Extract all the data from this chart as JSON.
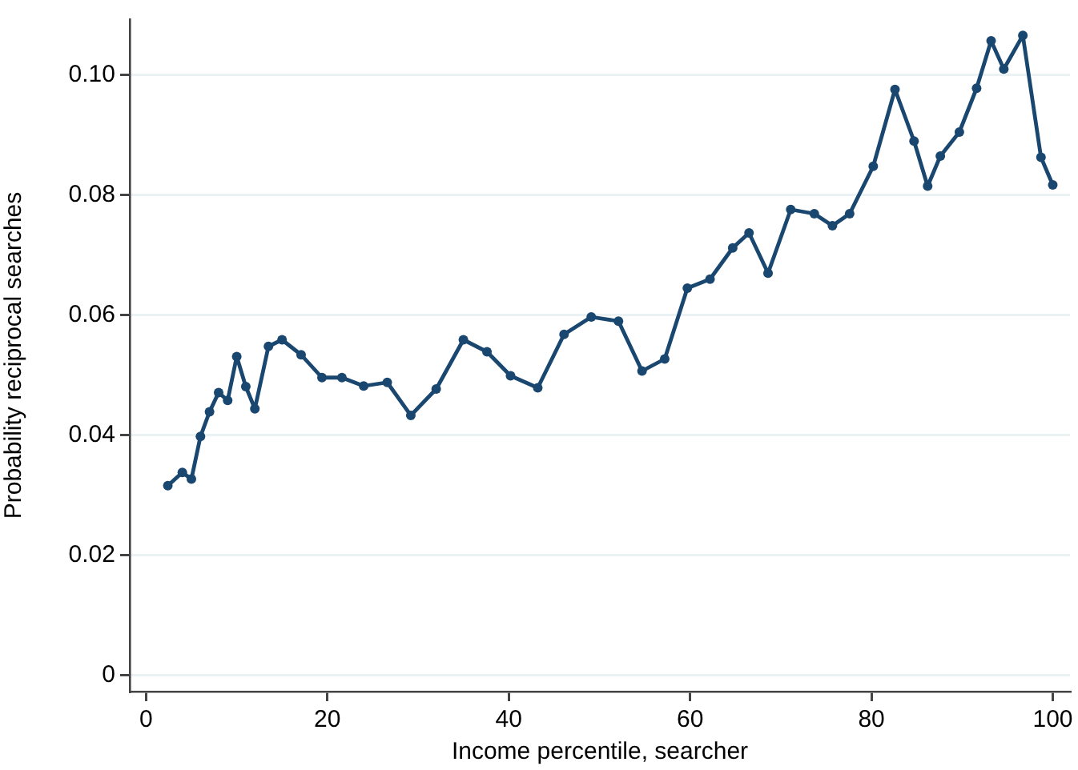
{
  "chart_data": {
    "type": "line",
    "xlabel": "Income percentile, searcher",
    "ylabel": "Probability reciprocal searches",
    "x": [
      2.4,
      4,
      5,
      6,
      7,
      8,
      9,
      10,
      11,
      12,
      13.5,
      15,
      17.1,
      19.4,
      21.6,
      24,
      26.6,
      29.2,
      32,
      35,
      37.6,
      40.2,
      43.2,
      46.1,
      49.1,
      52.1,
      54.7,
      57.2,
      59.7,
      62.2,
      64.7,
      66.5,
      68.6,
      71.1,
      73.7,
      75.7,
      77.6,
      80.2,
      82.6,
      84.7,
      86.2,
      87.6,
      89.7,
      91.6,
      93.2,
      94.6,
      96.7,
      98.7,
      100
    ],
    "series": [
      {
        "color": "#1a476f",
        "values": [
          0.0316,
          0.0338,
          0.0327,
          0.0398,
          0.0439,
          0.0471,
          0.0458,
          0.0531,
          0.0481,
          0.0444,
          0.0548,
          0.0559,
          0.0534,
          0.0496,
          0.0496,
          0.0482,
          0.0488,
          0.0433,
          0.0477,
          0.0559,
          0.0539,
          0.0499,
          0.0479,
          0.0568,
          0.0597,
          0.059,
          0.0507,
          0.0527,
          0.0645,
          0.066,
          0.0712,
          0.0737,
          0.067,
          0.0776,
          0.0769,
          0.0749,
          0.0769,
          0.0848,
          0.0976,
          0.089,
          0.0815,
          0.0865,
          0.0905,
          0.0978,
          0.1057,
          0.101,
          0.1066,
          0.0863,
          0.0817
        ]
      }
    ],
    "xlim": [
      -1.8,
      101.9
    ],
    "ylim": [
      -0.0027,
      0.1093
    ],
    "xticks": [
      0,
      20,
      40,
      60,
      80,
      100
    ],
    "yticks": [
      0,
      0.02,
      0.04,
      0.06,
      0.08,
      {
        "value": 0.1,
        "label": "0.10"
      }
    ],
    "grid": "y",
    "legend": false,
    "marker": "circle",
    "line_style": "solid"
  }
}
